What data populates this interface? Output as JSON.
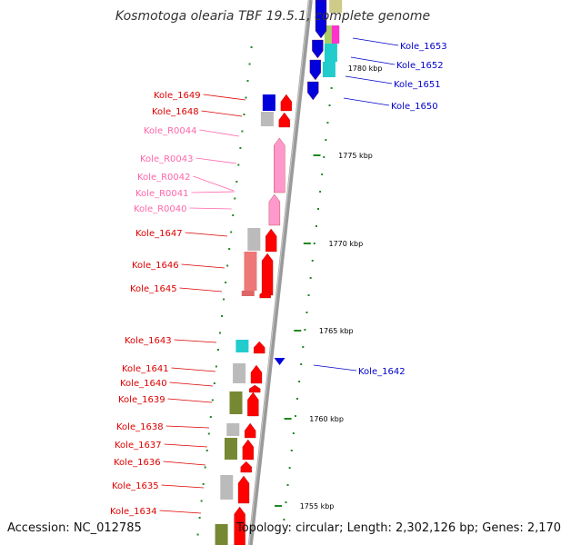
{
  "title": "Kosmotoga olearia TBF 19.5.1, complete genome",
  "footer": {
    "accession": "Accession: NC_012785",
    "info": "Topology: circular; Length: 2,302,126 bp; Genes: 2,170"
  },
  "colors": {
    "backbone": "#9a9a9a",
    "forward_label": "#dd0000",
    "reverse_label": "#0000cc",
    "rna_label": "#ff66aa",
    "tick": "#228822"
  },
  "kbp_labels": [
    "1780 kbp",
    "1775 kbp",
    "1770 kbp",
    "1765 kbp",
    "1760 kbp",
    "1755 kbp"
  ],
  "genes": [
    {
      "id": "Kole_1653",
      "strand": "reverse"
    },
    {
      "id": "Kole_1652",
      "strand": "reverse"
    },
    {
      "id": "Kole_1651",
      "strand": "reverse"
    },
    {
      "id": "Kole_1650",
      "strand": "reverse"
    },
    {
      "id": "Kole_1649",
      "strand": "forward"
    },
    {
      "id": "Kole_1648",
      "strand": "forward"
    },
    {
      "id": "Kole_R0044",
      "strand": "rna"
    },
    {
      "id": "Kole_R0043",
      "strand": "rna"
    },
    {
      "id": "Kole_R0042",
      "strand": "rna"
    },
    {
      "id": "Kole_R0041",
      "strand": "rna"
    },
    {
      "id": "Kole_R0040",
      "strand": "rna"
    },
    {
      "id": "Kole_1647",
      "strand": "forward"
    },
    {
      "id": "Kole_1646",
      "strand": "forward"
    },
    {
      "id": "Kole_1645",
      "strand": "forward"
    },
    {
      "id": "Kole_1643",
      "strand": "forward"
    },
    {
      "id": "Kole_1642",
      "strand": "reverse"
    },
    {
      "id": "Kole_1641",
      "strand": "forward"
    },
    {
      "id": "Kole_1640",
      "strand": "forward"
    },
    {
      "id": "Kole_1639",
      "strand": "forward"
    },
    {
      "id": "Kole_1638",
      "strand": "forward"
    },
    {
      "id": "Kole_1637",
      "strand": "forward"
    },
    {
      "id": "Kole_1636",
      "strand": "forward"
    },
    {
      "id": "Kole_1635",
      "strand": "forward"
    },
    {
      "id": "Kole_1634",
      "strand": "forward"
    }
  ]
}
